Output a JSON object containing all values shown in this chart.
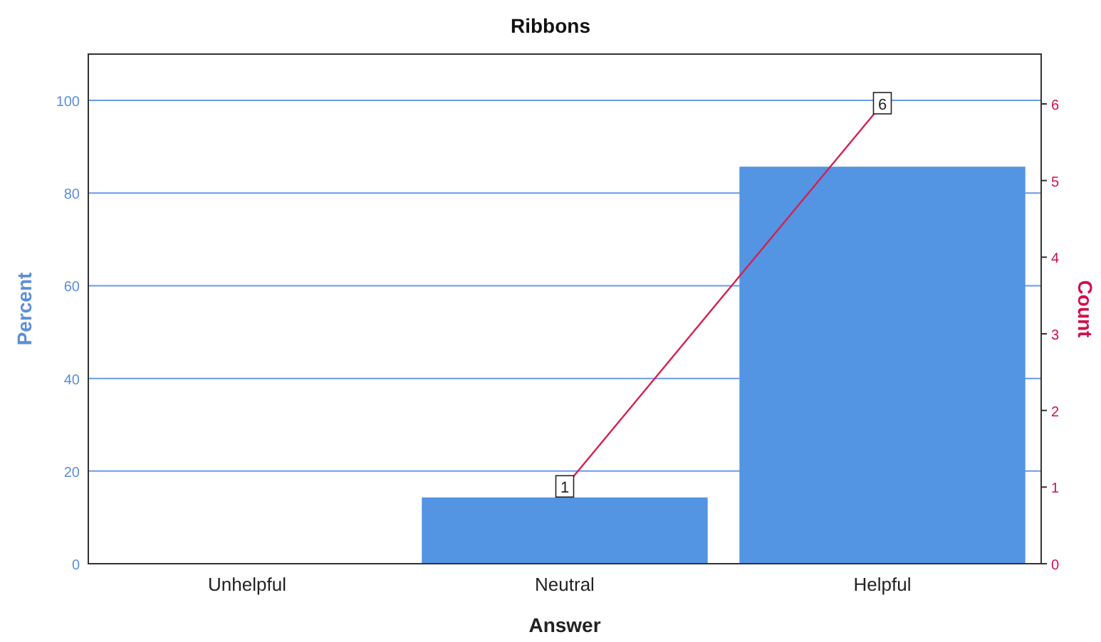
{
  "chart_data": {
    "type": "bar",
    "title": "Ribbons",
    "xlabel": "Answer",
    "ylabel": "Percent",
    "y2label": "Count",
    "categories": [
      "Unhelpful",
      "Neutral",
      "Helpful"
    ],
    "series": [
      {
        "color": "#5394e3",
        "values": [
          null,
          14.3,
          85.7
        ]
      },
      {
        "type": "line",
        "axis": "y2",
        "marker": "square",
        "color": "#d6204e",
        "values": [
          null,
          1,
          6
        ],
        "value_labels": [
          null,
          "1",
          "6"
        ]
      }
    ],
    "ylim": [
      0,
      110
    ],
    "yticks": [
      0,
      20,
      40,
      60,
      80,
      100
    ],
    "y2lim": [
      0,
      6.65
    ],
    "y2ticks": [
      0,
      1,
      2,
      3,
      4,
      5,
      6
    ],
    "grid": "y",
    "line_style": "solid"
  }
}
